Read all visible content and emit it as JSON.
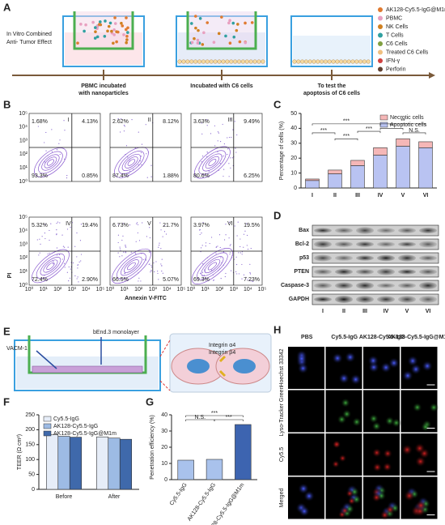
{
  "panels": [
    "A",
    "B",
    "C",
    "D",
    "E",
    "F",
    "G",
    "H"
  ],
  "panel_a": {
    "side_text": [
      "In Vitro Combined",
      "Anti- Tumor Effect"
    ],
    "steps": [
      [
        "PBMC incubated",
        "with nanoparticles"
      ],
      [
        "Incubated with C6 cells"
      ],
      [
        "To test the",
        "apoptosis of C6 cells"
      ]
    ],
    "legend": [
      "AK128-Cy5.5-IgG@M1m",
      "PBMC",
      "NK Cells",
      "T Cells",
      "C6 Cells",
      "Treated C6 Cells",
      "IFN-γ",
      "Perforin"
    ]
  },
  "panel_b": {
    "y_label": "PI",
    "x_label": "Annexin V-FITC",
    "ticks": [
      "10⁰",
      "10¹",
      "10²",
      "10³",
      "10⁴",
      "10⁵"
    ],
    "plots": [
      {
        "label": "I",
        "quadrants": [
          "1.68%",
          "4.13%",
          "93.3%",
          "0.85%"
        ]
      },
      {
        "label": "II",
        "quadrants": [
          "2.62%",
          "8.12%",
          "87.4%",
          "1.88%"
        ]
      },
      {
        "label": "III",
        "quadrants": [
          "3.63%",
          "9.49%",
          "80.6%",
          "6.25%"
        ]
      },
      {
        "label": "IV",
        "quadrants": [
          "5.32%",
          "19.4%",
          "72.4%",
          "2.90%"
        ]
      },
      {
        "label": "V",
        "quadrants": [
          "6.73%",
          "21.7%",
          "66.5%",
          "5.07%"
        ]
      },
      {
        "label": "VI",
        "quadrants": [
          "3.97%",
          "19.5%",
          "69.3%",
          "7.23%"
        ]
      }
    ]
  },
  "panel_d": {
    "rows": [
      "Bax",
      "Bcl-2",
      "p53",
      "PTEN",
      "Caspase-3",
      "GAPDH"
    ],
    "columns": [
      "I",
      "II",
      "III",
      "IV",
      "V",
      "VI"
    ]
  },
  "panel_e": {
    "labels": [
      "bEnd.3 monolayer",
      "VACM-1",
      "Integrin α4",
      "Integrin β4"
    ]
  },
  "panel_h": {
    "columns": [
      "PBS",
      "Cy5.5-IgG",
      "AK128-Cy5.5-IgG",
      "AK128-Cy5.5-IgG@M1m"
    ],
    "rows": [
      "Hoechst 33342",
      "Lyso-Tracker Green",
      "Cy5.5",
      "Merged"
    ]
  },
  "chart_data": [
    {
      "type": "bar",
      "stacked": true,
      "y_label": "Percentage of cells (%)",
      "categories": [
        "I",
        "II",
        "III",
        "IV",
        "V",
        "VI"
      ],
      "series": [
        {
          "name": "Apoptotic cells",
          "color": "#b9c3f2",
          "values": [
            5,
            9.5,
            15,
            22,
            28,
            27
          ]
        },
        {
          "name": "Necrotic cells",
          "color": "#f5b7b7",
          "values": [
            1,
            2.5,
            3.5,
            5,
            5,
            4
          ]
        }
      ],
      "ylim": [
        0,
        50
      ],
      "yticks": [
        0,
        10,
        20,
        30,
        40,
        50
      ],
      "legend": "upper right",
      "annotations": [
        "***",
        "***",
        "***",
        "***",
        "**",
        "**",
        "N.S."
      ]
    },
    {
      "type": "bar",
      "grouped": true,
      "y_label": "TEER (Ω cm²)",
      "categories": [
        "Before",
        "After"
      ],
      "series": [
        {
          "name": "Cy5.5-IgG",
          "color": "#e6edf8",
          "values": [
            183,
            176
          ]
        },
        {
          "name": "AK128-Cy5.5-IgG",
          "color": "#9dbbe4",
          "values": [
            178,
            172
          ]
        },
        {
          "name": "AK128-Cy5.5-IgG@M1m",
          "color": "#3f69ab",
          "values": [
            175,
            168
          ]
        }
      ],
      "ylim": [
        0,
        250
      ],
      "yticks": [
        0,
        50,
        100,
        150,
        200,
        250
      ],
      "legend": "upper left"
    },
    {
      "type": "bar",
      "y_label": "Penetration efficiency (%)",
      "categories": [
        "Cy5.5-IgG",
        "AK128-Cy5.5-IgG",
        "AK128-Cy5.5-IgG@M1m"
      ],
      "values": [
        12,
        12.5,
        34
      ],
      "colors": [
        "#a9c2ec",
        "#a9c2ec",
        "#3d64b0"
      ],
      "ylim": [
        0,
        40
      ],
      "yticks": [
        0,
        10,
        20,
        30,
        40
      ],
      "annotations": [
        "N.S.",
        "***",
        "***"
      ]
    }
  ]
}
